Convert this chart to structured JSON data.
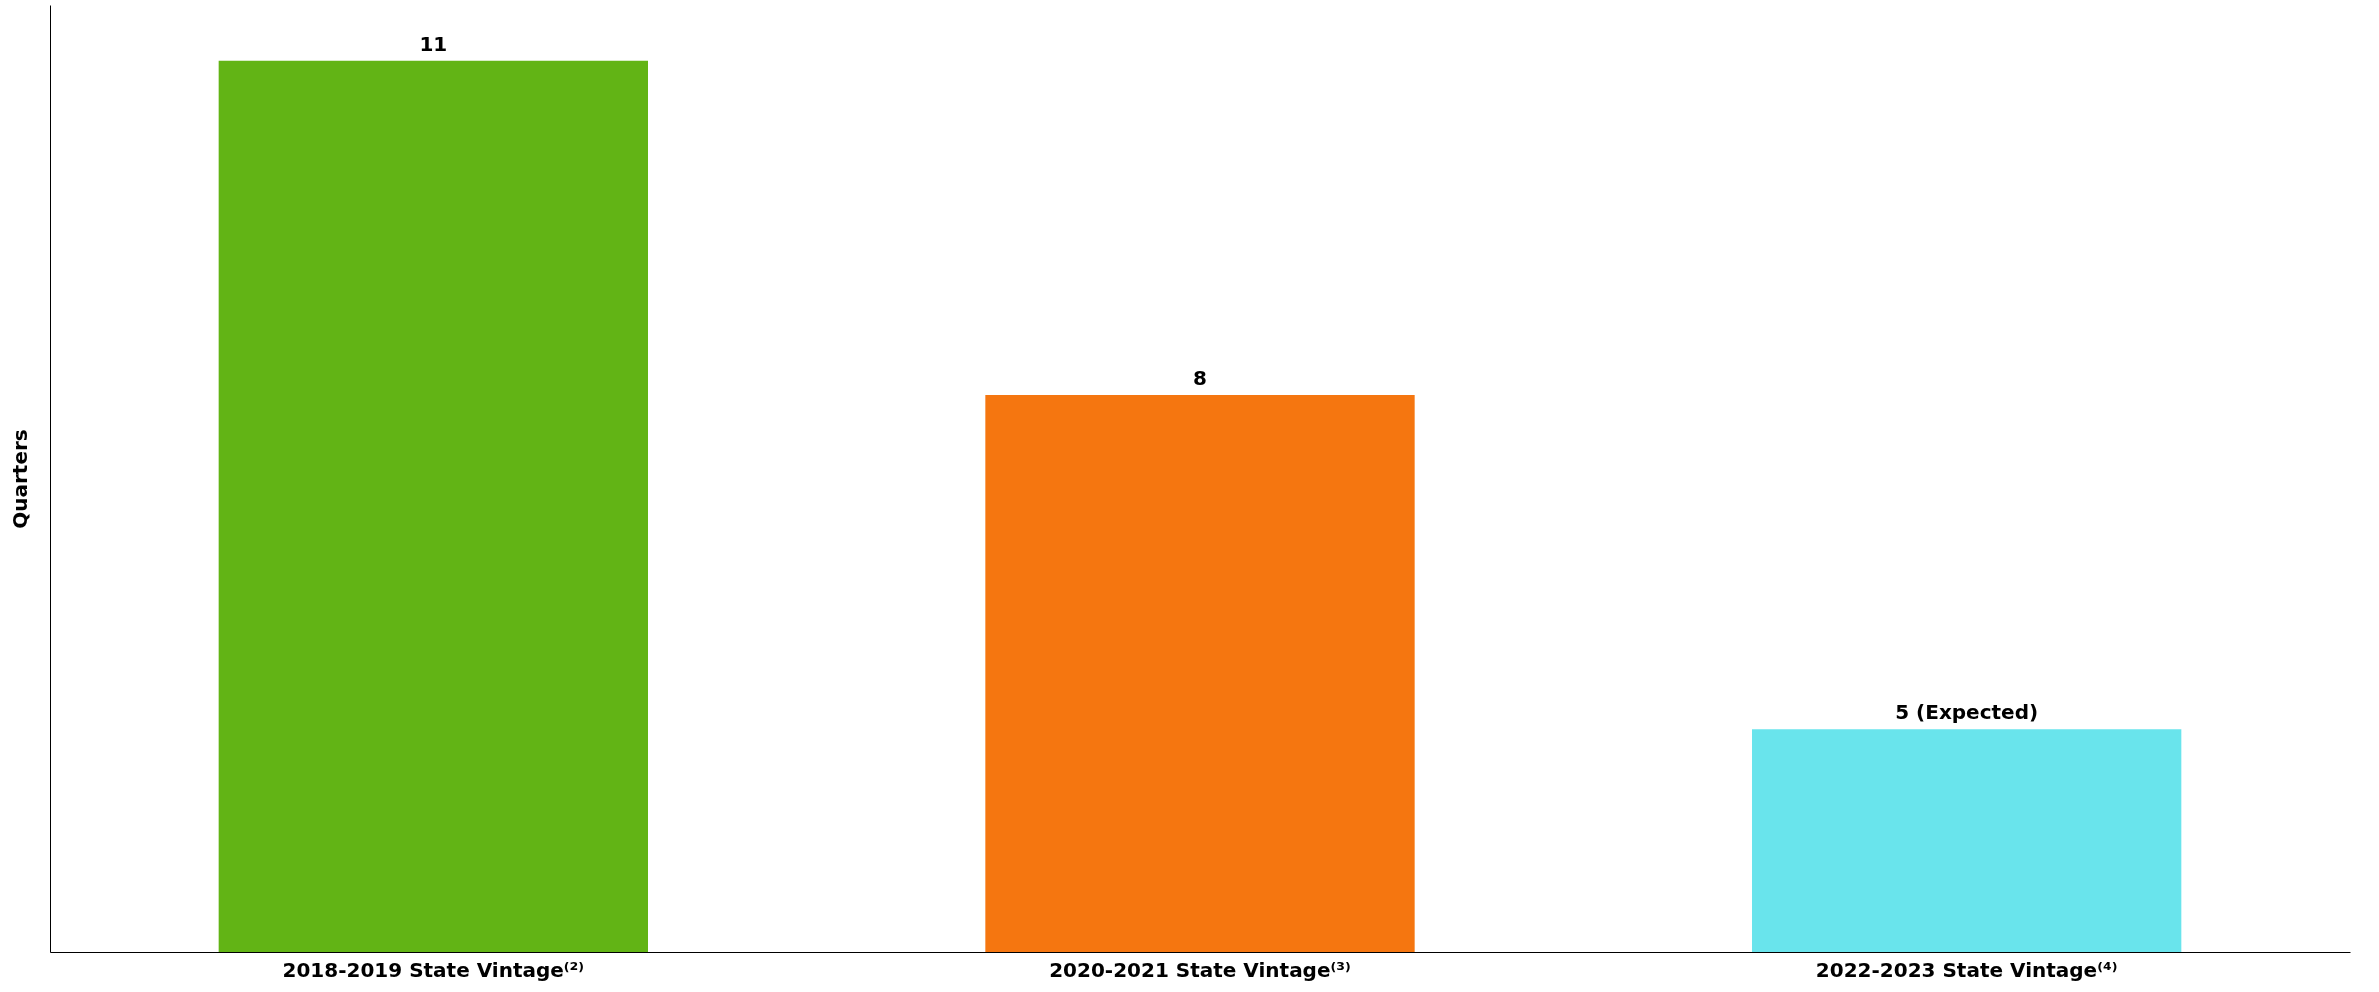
{
  "chart_data": {
    "type": "bar",
    "ylabel": "Quarters",
    "categories": [
      "2018-2019 State Vintage⁽²⁾",
      "2020-2021 State Vintage⁽³⁾",
      "2022-2023 State Vintage⁽⁴⁾"
    ],
    "values": [
      11,
      8,
      5
    ],
    "value_labels": [
      "11",
      "8",
      "5 (Expected)"
    ],
    "colors": [
      "#62b415",
      "#f57610",
      "#69e4ec"
    ],
    "ylim": [
      3,
      11.5
    ],
    "tick_labels": "x",
    "grid": false
  }
}
